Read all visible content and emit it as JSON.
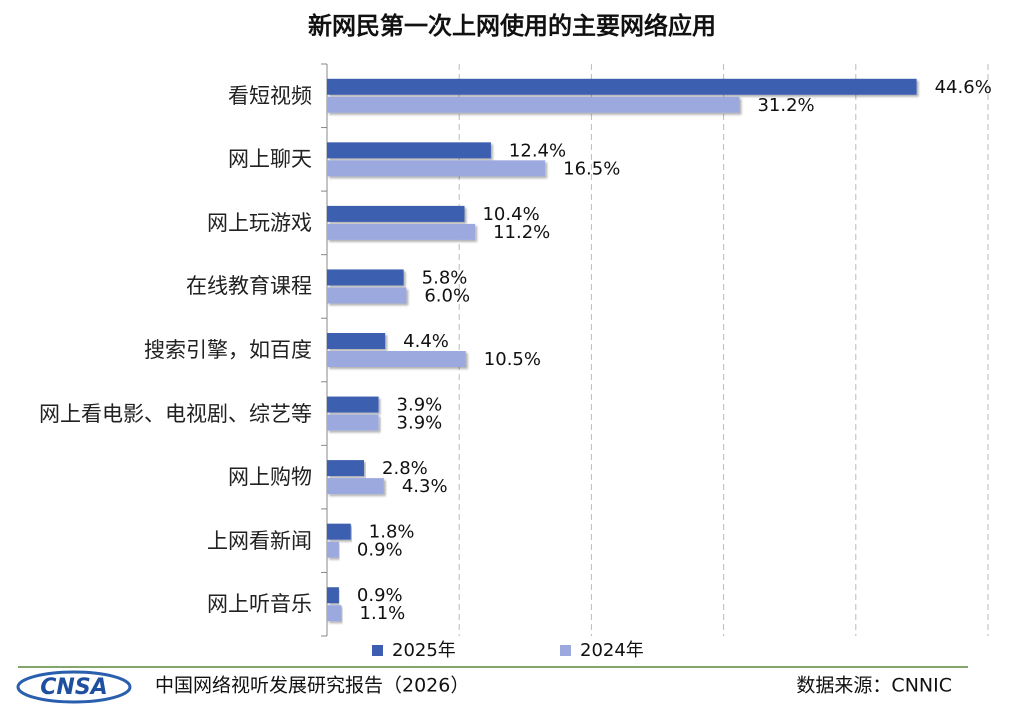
{
  "chart_data": {
    "type": "bar",
    "orientation": "horizontal",
    "title": "新网民第一次上网使用的主要网络应用",
    "categories": [
      "看短视频",
      "网上聊天",
      "网上玩游戏",
      "在线教育课程",
      "搜索引擎，如百度",
      "网上看电影、电视剧、综艺等",
      "网上购物",
      "上网看新闻",
      "网上听音乐"
    ],
    "series": [
      {
        "name": "2025年",
        "color": "#3d5eb0",
        "values": [
          44.6,
          12.4,
          10.4,
          5.8,
          4.4,
          3.9,
          2.8,
          1.8,
          0.9
        ],
        "value_labels": [
          "44.6%",
          "12.4%",
          "10.4%",
          "5.8%",
          "4.4%",
          "3.9%",
          "2.8%",
          "1.8%",
          "0.9%"
        ]
      },
      {
        "name": "2024年",
        "color": "#9ba9de",
        "values": [
          31.2,
          16.5,
          11.2,
          6.0,
          10.5,
          3.9,
          4.3,
          0.9,
          1.1
        ],
        "value_labels": [
          "31.2%",
          "16.5%",
          "11.2%",
          "6.0%",
          "10.5%",
          "3.9%",
          "4.3%",
          "0.9%",
          "1.1%"
        ]
      }
    ],
    "xlim": [
      0,
      50
    ],
    "xticks": [
      0,
      10,
      20,
      30,
      40,
      50
    ],
    "grid": true,
    "legend": "bottom"
  },
  "footer": {
    "logo": "CNSA",
    "report": "中国网络视听发展研究报告（2026）",
    "source": "数据来源：CNNIC"
  }
}
